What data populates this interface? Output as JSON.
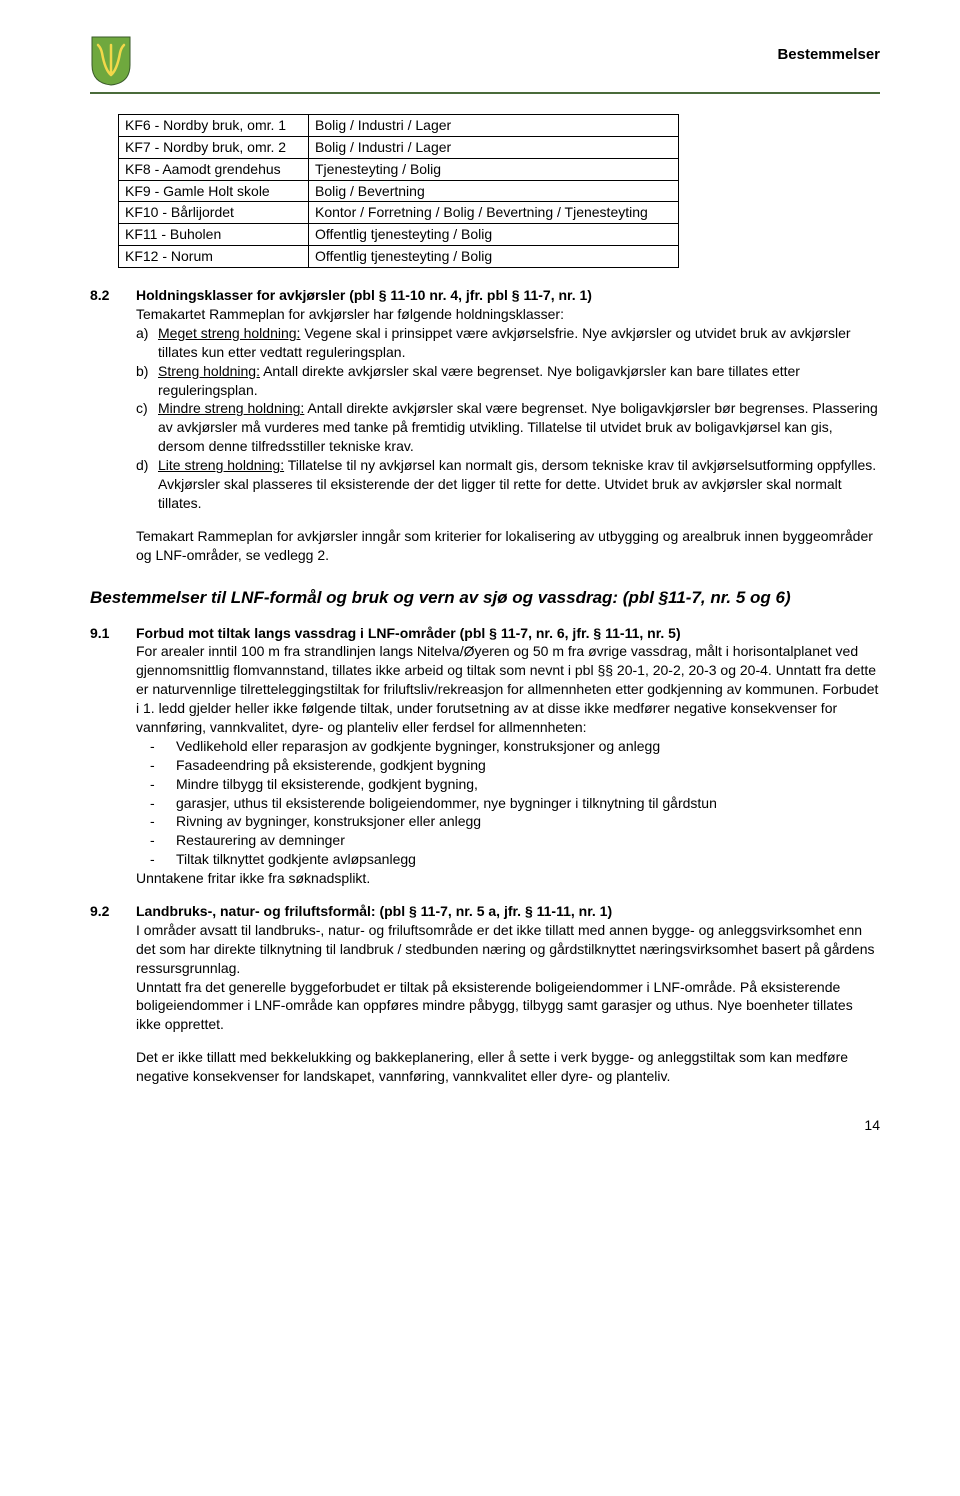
{
  "header": {
    "title": "Bestemmelser",
    "shield_bg": "#6fa83e",
    "shield_fg": "#f2d84a",
    "rule_color": "#4a6b3a"
  },
  "table": {
    "rows": [
      [
        "KF6 - Nordby bruk, omr. 1",
        "Bolig / Industri / Lager"
      ],
      [
        "KF7 - Nordby bruk, omr. 2",
        "Bolig / Industri / Lager"
      ],
      [
        "KF8 - Aamodt grendehus",
        "Tjenesteyting / Bolig"
      ],
      [
        "KF9 - Gamle Holt skole",
        "Bolig / Bevertning"
      ],
      [
        "KF10 - Bårlijordet",
        "Kontor / Forretning / Bolig / Bevertning / Tjenesteyting"
      ],
      [
        "KF11 - Buholen",
        "Offentlig tjenesteyting / Bolig"
      ],
      [
        "KF12 - Norum",
        "Offentlig tjenesteyting / Bolig"
      ]
    ]
  },
  "s82": {
    "num": "8.2",
    "title": "Holdningsklasser for avkjørsler (pbl § 11-10 nr. 4, jfr. pbl § 11-7, nr. 1)",
    "intro": "Temakartet Rammeplan for avkjørsler har følgende holdningsklasser:",
    "items": [
      {
        "m": "a)",
        "u": "Meget streng holdning:",
        "t": " Vegene skal i prinsippet være avkjørselsfrie. Nye avkjørsler og utvidet bruk av avkjørsler tillates kun etter vedtatt reguleringsplan."
      },
      {
        "m": "b)",
        "u": "Streng holdning:",
        "t": " Antall direkte avkjørsler skal være begrenset. Nye boligavkjørsler kan bare tillates etter reguleringsplan."
      },
      {
        "m": "c)",
        "u": "Mindre streng holdning:",
        "t": " Antall direkte avkjørsler skal være begrenset. Nye boligavkjørsler bør begrenses. Plassering av avkjørsler må vurderes med tanke på fremtidig utvikling. Tillatelse til utvidet bruk av boligavkjørsel kan gis, dersom denne tilfredsstiller tekniske krav."
      },
      {
        "m": "d)",
        "u": "Lite streng holdning:",
        "t": " Tillatelse til ny avkjørsel kan normalt gis, dersom tekniske krav til avkjørselsutforming oppfylles. Avkjørsler skal plasseres til eksisterende der det ligger til rette for dette. Utvidet bruk av avkjørsler skal normalt tillates."
      }
    ],
    "outro": "Temakart Rammeplan for avkjørsler inngår som kriterier for lokalisering av utbygging og arealbruk innen byggeområder og LNF-områder, se vedlegg 2."
  },
  "heading2": "Bestemmelser til LNF-formål og bruk og vern av sjø og vassdrag: (pbl §11-7, nr. 5 og 6)",
  "s91": {
    "num": "9.1",
    "title": "Forbud mot tiltak langs vassdrag i LNF-områder (pbl § 11-7, nr. 6, jfr. § 11-11, nr. 5)",
    "body": "For arealer inntil 100 m fra strandlinjen langs Nitelva/Øyeren og 50 m fra øvrige vassdrag, målt i horisontalplanet ved gjennomsnittlig flomvannstand, tillates ikke arbeid og tiltak som nevnt i pbl §§ 20-1, 20-2, 20-3 og 20-4. Unntatt fra dette er naturvennlige tilretteleggingstiltak for friluftsliv/rekreasjon for allmennheten etter godkjenning av kommunen. Forbudet i 1. ledd gjelder heller ikke følgende tiltak, under forutsetning av at disse ikke medfører negative konsekvenser for vannføring, vannkvalitet, dyre- og planteliv eller ferdsel for allmennheten:",
    "dashes": [
      "Vedlikehold eller reparasjon av godkjente bygninger, konstruksjoner og anlegg",
      "Fasadeendring på eksisterende, godkjent bygning",
      "Mindre tilbygg til eksisterende, godkjent bygning,",
      "garasjer, uthus til eksisterende boligeiendommer, nye bygninger i tilknytning til gårdstun",
      "Rivning av bygninger, konstruksjoner eller anlegg",
      "Restaurering av demninger",
      "Tiltak tilknyttet godkjente avløpsanlegg"
    ],
    "after": "Unntakene fritar ikke fra søknadsplikt."
  },
  "s92": {
    "num": "9.2",
    "title": "Landbruks-, natur- og friluftsformål: (pbl § 11-7, nr. 5 a, jfr. § 11-11, nr. 1)",
    "p1": "I områder avsatt til landbruks-, natur- og friluftsområde er det ikke tillatt med annen bygge- og anleggsvirksomhet enn det som har direkte tilknytning til landbruk / stedbunden næring og gårdstilknyttet næringsvirksomhet basert på gårdens ressursgrunnlag.",
    "p2": "Unntatt fra det generelle byggeforbudet er tiltak på eksisterende boligeiendommer i LNF-område. På eksisterende boligeiendommer i LNF-område kan oppføres mindre påbygg, tilbygg samt garasjer og uthus. Nye boenheter tillates ikke opprettet.",
    "p3": "Det er ikke tillatt med bekkelukking og bakkeplanering, eller å sette i verk bygge- og anleggstiltak som kan medføre negative konsekvenser for landskapet, vannføring, vannkvalitet eller dyre- og planteliv."
  },
  "pagenum": "14"
}
